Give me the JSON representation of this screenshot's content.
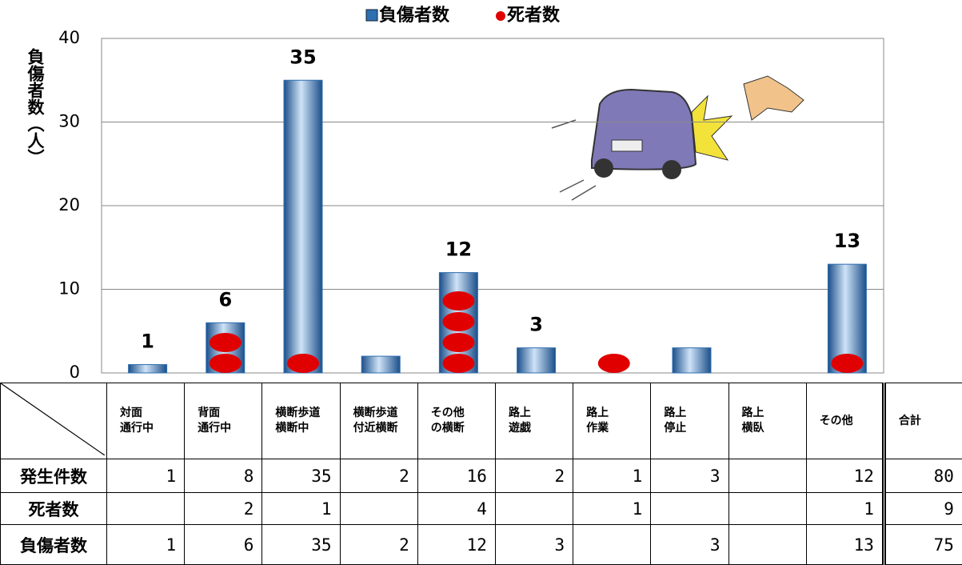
{
  "chart_data": {
    "type": "bar",
    "ylabel": "負傷者数（人）",
    "ylim": [
      0,
      40
    ],
    "yticks": [
      0,
      10,
      20,
      30,
      40
    ],
    "grid": true,
    "categories": [
      "対面\n通行中",
      "背面\n通行中",
      "横断歩道\n横断中",
      "横断歩道\n付近横断",
      "その他\nの横断",
      "路上\n遊戯",
      "路上\n作業",
      "路上\n停止",
      "路上\n横臥",
      "その他"
    ],
    "total_label": "合計",
    "incidents": {
      "name": "発生件数",
      "values": [
        1,
        8,
        35,
        2,
        16,
        2,
        1,
        3,
        null,
        12
      ],
      "total": 80
    },
    "series": [
      {
        "name": "負傷者数",
        "color": "#2f6fb0",
        "values": [
          1,
          6,
          35,
          2,
          12,
          3,
          null,
          3,
          null,
          13
        ],
        "value_labels": [
          "1",
          "6",
          "35",
          null,
          "12",
          "3",
          null,
          null,
          null,
          "13"
        ],
        "total": 75
      },
      {
        "name": "死者数",
        "color": "#e00000",
        "type": "dots",
        "values": [
          null,
          2,
          1,
          null,
          4,
          null,
          1,
          null,
          null,
          1
        ],
        "total": 9
      }
    ]
  }
}
